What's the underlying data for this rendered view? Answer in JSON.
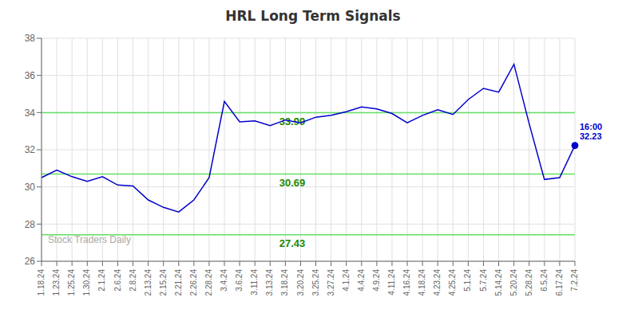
{
  "chart_data": {
    "type": "line",
    "title": "HRL Long Term Signals",
    "color": "#0000cc",
    "categories": [
      "1.18.24",
      "1.23.24",
      "1.25.24",
      "1.30.24",
      "2.1.24",
      "2.6.24",
      "2.8.24",
      "2.13.24",
      "2.15.24",
      "2.21.24",
      "2.26.24",
      "2.28.24",
      "3.4.24",
      "3.6.24",
      "3.11.24",
      "3.13.24",
      "3.18.24",
      "3.20.24",
      "3.25.24",
      "3.27.24",
      "4.1.24",
      "4.4.24",
      "4.9.24",
      "4.11.24",
      "4.16.24",
      "4.18.24",
      "4.23.24",
      "4.25.24",
      "5.1.24",
      "5.7.24",
      "5.14.24",
      "5.20.24",
      "5.28.24",
      "6.5.24",
      "6.17.24",
      "7.2.24"
    ],
    "values": [
      30.5,
      30.9,
      30.55,
      30.3,
      30.55,
      30.1,
      30.05,
      29.3,
      28.9,
      28.65,
      29.3,
      30.5,
      34.6,
      33.5,
      33.55,
      33.3,
      33.6,
      33.45,
      33.75,
      33.85,
      34.05,
      34.3,
      34.2,
      33.95,
      33.45,
      33.85,
      34.15,
      33.9,
      34.7,
      35.3,
      35.1,
      36.6,
      33.4,
      30.4,
      30.5,
      32.23
    ],
    "ylim": [
      26,
      38
    ],
    "yticks": [
      26,
      28,
      30,
      32,
      34,
      36,
      38
    ],
    "grid": true,
    "hlines": [
      {
        "value": 33.99,
        "label": "33.99",
        "color": "#66dd66",
        "label_color": "#228800"
      },
      {
        "value": 30.69,
        "label": "30.69",
        "color": "#66dd66",
        "label_color": "#228800"
      },
      {
        "value": 27.43,
        "label": "27.43",
        "color": "#66dd66",
        "label_color": "#228800"
      }
    ],
    "annotations": [
      {
        "text": "16:00\n32.23",
        "x": "7.2.24",
        "y": 32.23,
        "color": "#0000cc"
      }
    ],
    "watermark": "Stock Traders Daily"
  }
}
